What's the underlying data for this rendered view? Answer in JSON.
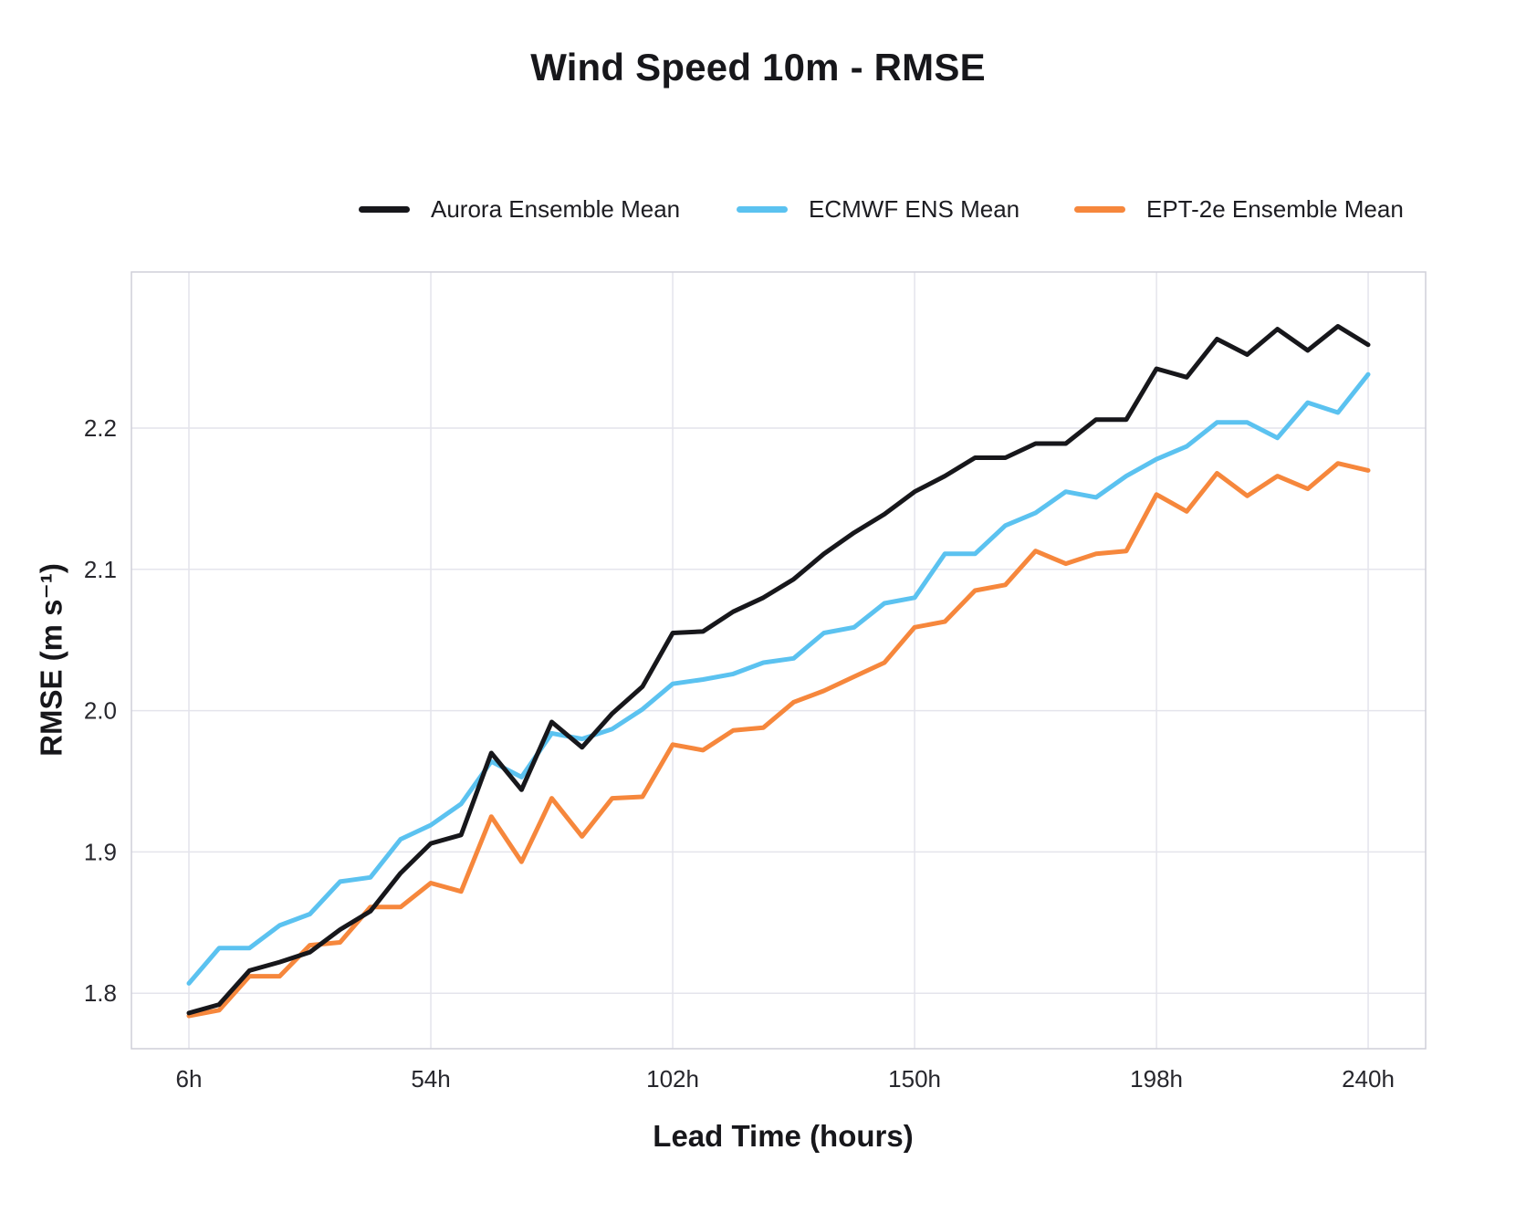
{
  "title": "Wind Speed 10m - RMSE",
  "legend": {
    "items": [
      {
        "label": "Aurora Ensemble Mean",
        "color": "#17171b"
      },
      {
        "label": "ECMWF ENS Mean",
        "color": "#5bc2f0"
      },
      {
        "label": "EPT-2e Ensemble Mean",
        "color": "#f6873c"
      }
    ]
  },
  "axes": {
    "x_title": "Lead Time (hours)",
    "y_title": "RMSE (m s⁻¹)",
    "x_ticks": [
      {
        "hour": 6,
        "label": "6h"
      },
      {
        "hour": 54,
        "label": "54h"
      },
      {
        "hour": 102,
        "label": "102h"
      },
      {
        "hour": 150,
        "label": "150h"
      },
      {
        "hour": 198,
        "label": "198h"
      },
      {
        "hour": 240,
        "label": "240h"
      }
    ],
    "y_ticks": [
      {
        "value": 1.8,
        "label": "1.8"
      },
      {
        "value": 1.9,
        "label": "1.9"
      },
      {
        "value": 2.0,
        "label": "2.0"
      },
      {
        "value": 2.1,
        "label": "2.1"
      },
      {
        "value": 2.2,
        "label": "2.2"
      }
    ]
  },
  "chart_data": {
    "type": "line",
    "title": "Wind Speed 10m - RMSE",
    "xlabel": "Lead Time (hours)",
    "ylabel": "RMSE (m s⁻¹)",
    "x_unit": "hours",
    "x_tick_labels": [
      "6h",
      "54h",
      "102h",
      "150h",
      "198h",
      "240h"
    ],
    "ylim": [
      1.76,
      2.31
    ],
    "grid": true,
    "legend_position": "top-center",
    "x_hours": [
      6,
      12,
      18,
      24,
      30,
      36,
      42,
      48,
      54,
      60,
      66,
      72,
      78,
      84,
      90,
      96,
      102,
      108,
      114,
      120,
      126,
      132,
      138,
      144,
      150,
      156,
      162,
      168,
      174,
      180,
      186,
      192,
      198,
      204,
      210,
      216,
      222,
      228,
      234,
      240
    ],
    "series": [
      {
        "name": "Aurora Ensemble Mean",
        "color": "#17171b",
        "z": 3,
        "values": [
          1.786,
          1.792,
          1.816,
          1.822,
          1.829,
          1.845,
          1.858,
          1.885,
          1.906,
          1.912,
          1.97,
          1.944,
          1.992,
          1.974,
          1.998,
          2.017,
          2.055,
          2.056,
          2.07,
          2.08,
          2.093,
          2.111,
          2.126,
          2.139,
          2.155,
          2.166,
          2.179,
          2.179,
          2.189,
          2.189,
          2.206,
          2.206,
          2.242,
          2.236,
          2.263,
          2.252,
          2.27,
          2.255,
          2.272,
          2.259
        ]
      },
      {
        "name": "ECMWF ENS Mean",
        "color": "#5bc2f0",
        "z": 1,
        "values": [
          1.807,
          1.832,
          1.832,
          1.848,
          1.856,
          1.879,
          1.882,
          1.909,
          1.919,
          1.934,
          1.964,
          1.953,
          1.984,
          1.98,
          1.987,
          2.001,
          2.019,
          2.022,
          2.026,
          2.034,
          2.037,
          2.055,
          2.059,
          2.076,
          2.08,
          2.111,
          2.111,
          2.131,
          2.14,
          2.155,
          2.151,
          2.166,
          2.178,
          2.187,
          2.204,
          2.204,
          2.193,
          2.218,
          2.211,
          2.238
        ]
      },
      {
        "name": "EPT-2e Ensemble Mean",
        "color": "#f6873c",
        "z": 2,
        "values": [
          1.784,
          1.788,
          1.812,
          1.812,
          1.834,
          1.836,
          1.861,
          1.861,
          1.878,
          1.872,
          1.925,
          1.893,
          1.938,
          1.911,
          1.938,
          1.939,
          1.976,
          1.972,
          1.986,
          1.988,
          2.006,
          2.014,
          2.024,
          2.034,
          2.059,
          2.063,
          2.085,
          2.089,
          2.113,
          2.104,
          2.111,
          2.113,
          2.153,
          2.141,
          2.168,
          2.152,
          2.166,
          2.157,
          2.175,
          2.17
        ]
      }
    ]
  },
  "style": {
    "grid_color": "#e4e4ec",
    "border_color": "#cfcfd9",
    "tick_color": "#27272d"
  }
}
